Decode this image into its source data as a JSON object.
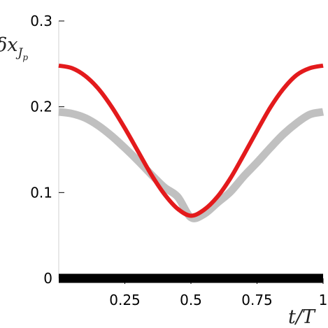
{
  "chart_data": {
    "type": "line",
    "xlabel": "t/T",
    "ylabel": "δx",
    "ylabel_sub": "J",
    "ylabel_subsub": "p",
    "xlim": [
      0,
      1
    ],
    "ylim": [
      0,
      0.3
    ],
    "x_ticks": [
      {
        "value": 0.25,
        "label": "0.25"
      },
      {
        "value": 0.5,
        "label": "0.5"
      },
      {
        "value": 0.75,
        "label": "0.75"
      },
      {
        "value": 1,
        "label": "1"
      }
    ],
    "y_ticks": [
      {
        "value": 0,
        "label": "0"
      },
      {
        "value": 0.1,
        "label": "0.1"
      },
      {
        "value": 0.2,
        "label": "0.2"
      },
      {
        "value": 0.3,
        "label": "0.3"
      }
    ],
    "grid": false,
    "series": [
      {
        "color": "#c0c0c0",
        "x": [
          0,
          0.05,
          0.1,
          0.15,
          0.2,
          0.25,
          0.3,
          0.35,
          0.4,
          0.45,
          0.5,
          0.55,
          0.6,
          0.65,
          0.7,
          0.75,
          0.8,
          0.85,
          0.9,
          0.95,
          1
        ],
        "y": [
          0.194,
          0.192,
          0.187,
          0.178,
          0.166,
          0.152,
          0.137,
          0.121,
          0.106,
          0.095,
          0.071,
          0.075,
          0.088,
          0.101,
          0.119,
          0.135,
          0.152,
          0.168,
          0.181,
          0.191,
          0.194
        ]
      },
      {
        "color": "#e31a1c",
        "x": [
          0,
          0.05,
          0.1,
          0.15,
          0.2,
          0.25,
          0.3,
          0.35,
          0.4,
          0.45,
          0.5,
          0.55,
          0.6,
          0.65,
          0.7,
          0.75,
          0.8,
          0.85,
          0.9,
          0.95,
          1
        ],
        "y": [
          0.248,
          0.245,
          0.236,
          0.221,
          0.2,
          0.175,
          0.148,
          0.121,
          0.098,
          0.081,
          0.073,
          0.08,
          0.095,
          0.117,
          0.144,
          0.172,
          0.199,
          0.221,
          0.237,
          0.245,
          0.248
        ]
      },
      {
        "color": "#000000",
        "x": [
          0,
          1
        ],
        "y": [
          0,
          0
        ]
      }
    ]
  }
}
